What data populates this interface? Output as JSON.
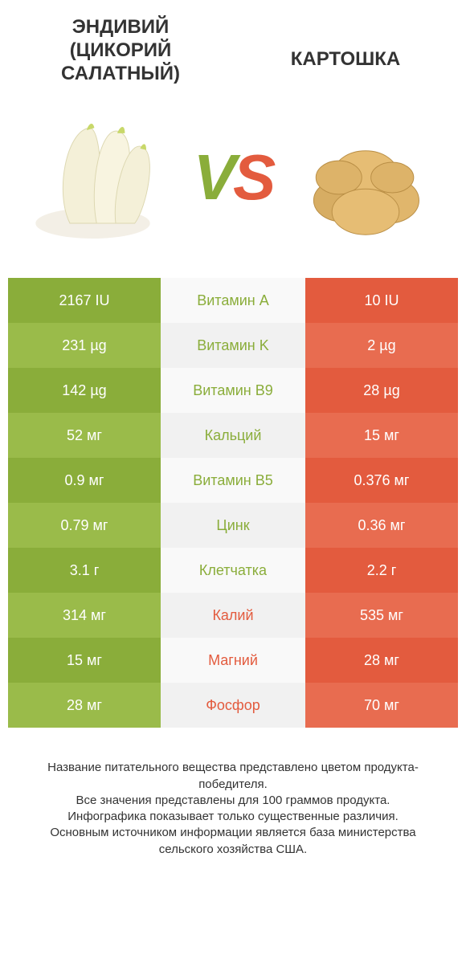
{
  "colors": {
    "left_primary": "#8aad3a",
    "left_secondary": "#9abb4a",
    "right_primary": "#e35b3e",
    "right_secondary": "#e86c50",
    "mid_bg_a": "#f9f9f9",
    "mid_bg_b": "#f1f1f1",
    "text_on_color": "#ffffff",
    "text_body": "#333333"
  },
  "left_title": "Эндивий (Цикорий салатный)",
  "right_title": "Картошка",
  "vs_v": "V",
  "vs_s": "S",
  "rows": [
    {
      "left": "2167 IU",
      "label": "Витамин A",
      "right": "10 IU",
      "winner": "left"
    },
    {
      "left": "231 µg",
      "label": "Витамин K",
      "right": "2 µg",
      "winner": "left"
    },
    {
      "left": "142 µg",
      "label": "Витамин B9",
      "right": "28 µg",
      "winner": "left"
    },
    {
      "left": "52 мг",
      "label": "Кальций",
      "right": "15 мг",
      "winner": "left"
    },
    {
      "left": "0.9 мг",
      "label": "Витамин B5",
      "right": "0.376 мг",
      "winner": "left"
    },
    {
      "left": "0.79 мг",
      "label": "Цинк",
      "right": "0.36 мг",
      "winner": "left"
    },
    {
      "left": "3.1 г",
      "label": "Клетчатка",
      "right": "2.2 г",
      "winner": "left"
    },
    {
      "left": "314 мг",
      "label": "Калий",
      "right": "535 мг",
      "winner": "right"
    },
    {
      "left": "15 мг",
      "label": "Магний",
      "right": "28 мг",
      "winner": "right"
    },
    {
      "left": "28 мг",
      "label": "Фосфор",
      "right": "70 мг",
      "winner": "right"
    }
  ],
  "footer_lines": [
    "Название питательного вещества представлено цветом продукта-победителя.",
    "Все значения представлены для 100 граммов продукта.",
    "Инфографика показывает только существенные различия.",
    "Основным источником информации является база министерства сельского хозяйства США."
  ]
}
